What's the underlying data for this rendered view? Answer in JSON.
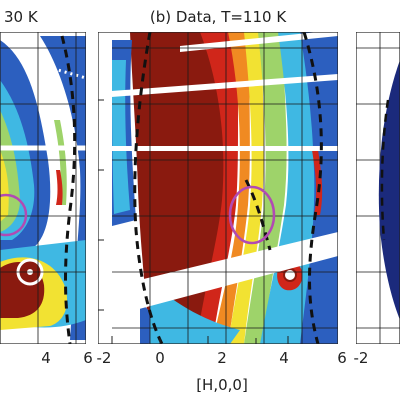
{
  "panels": {
    "left": {
      "title_fragment": "30 K",
      "tick_labels": [
        "4",
        "6"
      ]
    },
    "center": {
      "title": "(b) Data, T=110 K",
      "tick_labels": [
        "-2",
        "0",
        "2",
        "4",
        "6"
      ]
    },
    "right": {
      "tick_labels": [
        "-2"
      ]
    }
  },
  "axis": {
    "xlabel": "[H,0,0]"
  },
  "colors": {
    "dark_red": "#8a1a0f",
    "red": "#d0261a",
    "orange": "#f08a22",
    "yellow": "#f2e232",
    "light_green": "#9ed36a",
    "cyan": "#3fb8e3",
    "blue": "#2c5fbf",
    "navy": "#1b2a7c",
    "purple_circle": "#b14ab3",
    "line": "#111111"
  }
}
